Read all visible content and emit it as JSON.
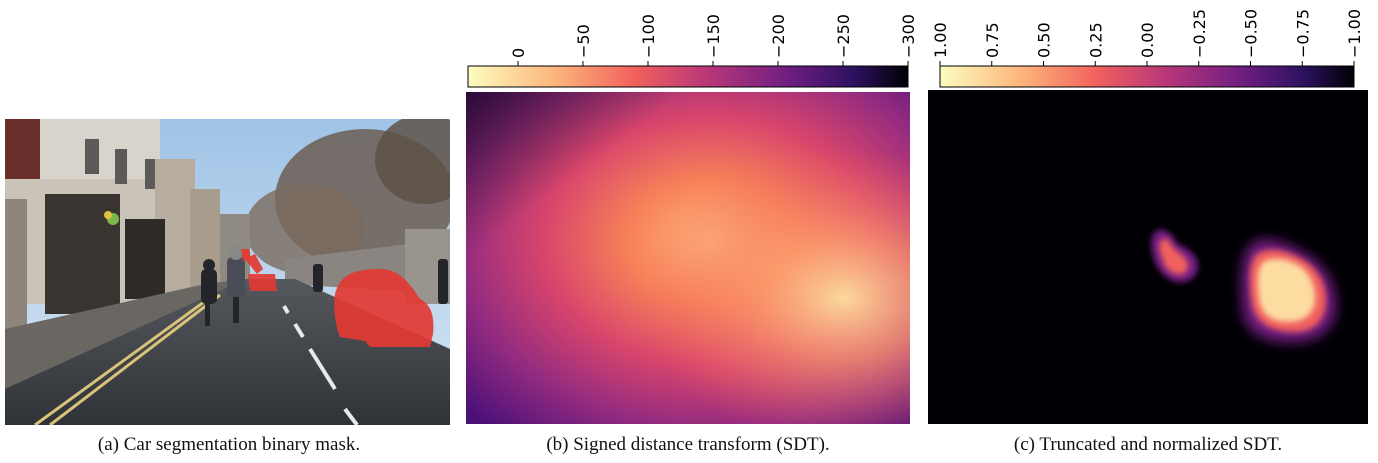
{
  "figure": {
    "panel_a": {
      "caption": "(a) Car segmentation binary mask."
    },
    "panel_b": {
      "caption": "(b) Signed distance transform (SDT).",
      "colorbar": {
        "ticks": [
          "0",
          "−50",
          "−100",
          "−150",
          "−200",
          "−250",
          "−300"
        ],
        "colormap": "magma",
        "range": [
          0,
          -300
        ]
      }
    },
    "panel_c": {
      "caption": "(c) Truncated and normalized SDT.",
      "colorbar": {
        "ticks": [
          "1.00",
          "0.75",
          "0.50",
          "0.25",
          "0.00",
          "−0.25",
          "−0.50",
          "−0.75",
          "−1.00"
        ],
        "colormap": "magma",
        "range": [
          1.0,
          -1.0
        ]
      }
    }
  },
  "colors": {
    "mask_red": "#e23a32",
    "magma_light": "#fcfdbf",
    "magma_orange": "#fb8861",
    "magma_pink": "#d3436e",
    "magma_purple": "#8c2981",
    "magma_indigo": "#3b0f70",
    "magma_dark": "#000004"
  }
}
